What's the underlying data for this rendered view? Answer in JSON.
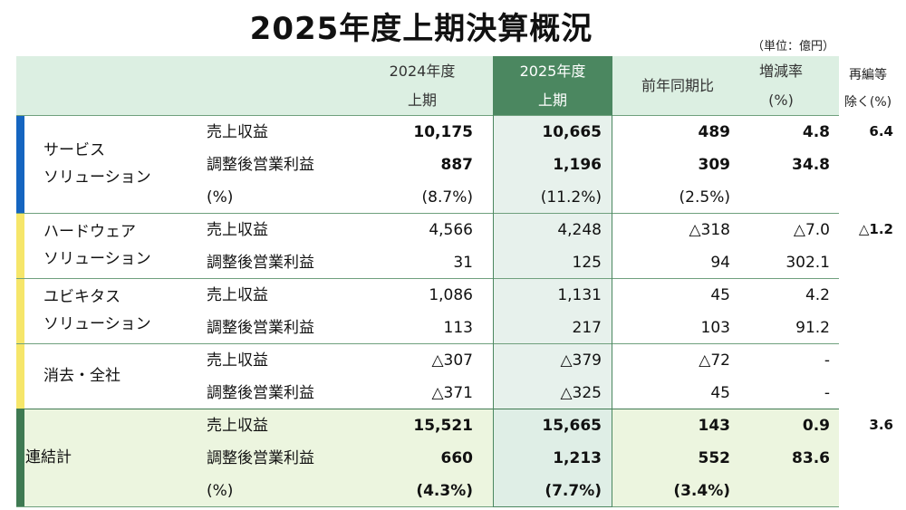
{
  "title": "2025年度上期決算概況",
  "unit": "（単位：億円）",
  "headers": {
    "col2024": [
      "2024年度",
      "上期"
    ],
    "col2025": [
      "2025年度",
      "上期"
    ],
    "yoy": "前年同期比",
    "rate": [
      "増減率",
      "(%)"
    ],
    "excl": [
      "再編等",
      "除く(%)"
    ]
  },
  "colors": {
    "header_bg": "#dcefe2",
    "header_2025_bg": "#4b8760",
    "col_2025_bg": "#e7f1ec",
    "total_bg": "#ecf5df",
    "accent_blue": "#1565c0",
    "accent_yellow": "#f6e66a",
    "accent_green": "#3f7a52"
  },
  "segments": [
    {
      "name": [
        "サービス",
        "ソリューション"
      ],
      "rows": [
        {
          "label": "売上収益",
          "v2024": "10,175",
          "v2025": "10,665",
          "yoy": "489",
          "rate": "4.8",
          "excl": "6.4",
          "bold": true
        },
        {
          "label": "調整後営業利益",
          "v2024": "887",
          "v2025": "1,196",
          "yoy": "309",
          "rate": "34.8",
          "excl": "",
          "bold": true
        },
        {
          "label": "(%)",
          "v2024": "(8.7%)",
          "v2025": "(11.2%)",
          "yoy": "(2.5%)",
          "rate": "",
          "excl": "",
          "bold": false
        }
      ]
    },
    {
      "name": [
        "ハードウェア",
        "ソリューション"
      ],
      "rows": [
        {
          "label": "売上収益",
          "v2024": "4,566",
          "v2025": "4,248",
          "yoy": "△318",
          "rate": "△7.0",
          "excl": "△1.2",
          "bold": false
        },
        {
          "label": "調整後営業利益",
          "v2024": "31",
          "v2025": "125",
          "yoy": "94",
          "rate": "302.1",
          "excl": "",
          "bold": false
        }
      ]
    },
    {
      "name": [
        "ユビキタス",
        "ソリューション"
      ],
      "rows": [
        {
          "label": "売上収益",
          "v2024": "1,086",
          "v2025": "1,131",
          "yoy": "45",
          "rate": "4.2",
          "excl": "",
          "bold": false
        },
        {
          "label": "調整後営業利益",
          "v2024": "113",
          "v2025": "217",
          "yoy": "103",
          "rate": "91.2",
          "excl": "",
          "bold": false
        }
      ]
    },
    {
      "name": [
        "消去・全社"
      ],
      "rows": [
        {
          "label": "売上収益",
          "v2024": "△307",
          "v2025": "△379",
          "yoy": "△72",
          "rate": "-",
          "excl": "",
          "bold": false
        },
        {
          "label": "調整後営業利益",
          "v2024": "△371",
          "v2025": "△325",
          "yoy": "45",
          "rate": "-",
          "excl": "",
          "bold": false
        }
      ]
    },
    {
      "name": [
        "連結計"
      ],
      "rows": [
        {
          "label": "売上収益",
          "v2024": "15,521",
          "v2025": "15,665",
          "yoy": "143",
          "rate": "0.9",
          "excl": "3.6",
          "bold": true
        },
        {
          "label": "調整後営業利益",
          "v2024": "660",
          "v2025": "1,213",
          "yoy": "552",
          "rate": "83.6",
          "excl": "",
          "bold": true
        },
        {
          "label": "(%)",
          "v2024": "(4.3%)",
          "v2025": "(7.7%)",
          "yoy": "(3.4%)",
          "rate": "",
          "excl": "",
          "bold": true
        }
      ]
    }
  ]
}
